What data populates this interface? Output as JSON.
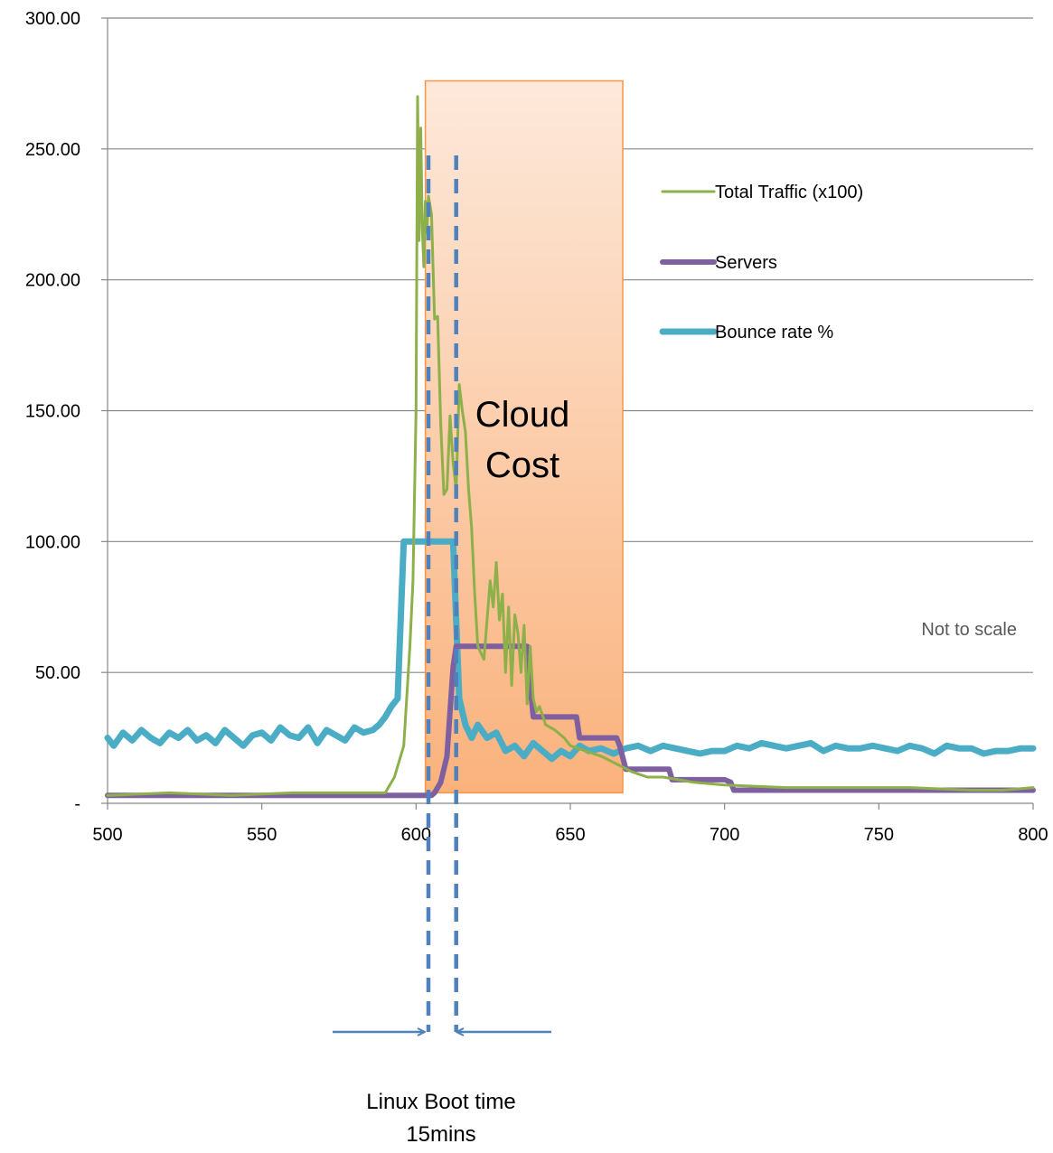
{
  "chart_data": {
    "type": "line",
    "title": "",
    "xlabel": "",
    "ylabel": "",
    "xlim": [
      500,
      800
    ],
    "ylim": [
      0,
      300
    ],
    "x_ticks": [
      500,
      550,
      600,
      650,
      700,
      750,
      800
    ],
    "x_tick_labels": [
      "500",
      "550",
      "600",
      "650",
      "700",
      "750",
      "800"
    ],
    "y_ticks": [
      0,
      50,
      100,
      150,
      200,
      250,
      300
    ],
    "y_tick_labels": [
      "-",
      "50.00",
      "100.00",
      "150.00",
      "200.00",
      "250.00",
      "300.00"
    ],
    "grid": true,
    "legend_position": "right",
    "series": [
      {
        "name": "Total Traffic (x100)",
        "color": "#8db04a",
        "x": [
          500,
          520,
          540,
          560,
          580,
          590,
          593,
          596,
          598,
          599,
          600,
          600.5,
          601,
          601.5,
          602,
          602.5,
          603,
          603.5,
          604,
          605,
          606,
          607,
          608,
          609,
          610,
          611,
          612,
          613,
          614,
          615,
          616,
          617,
          618,
          619,
          620,
          622,
          624,
          625,
          626,
          627,
          628,
          629,
          630,
          631,
          632,
          633,
          634,
          635,
          636,
          637,
          638,
          639,
          640,
          642,
          645,
          648,
          650,
          655,
          660,
          665,
          670,
          675,
          680,
          685,
          690,
          700,
          720,
          740,
          760,
          780,
          790,
          800
        ],
        "values": [
          3,
          4,
          3,
          4,
          4,
          4,
          10,
          22,
          60,
          85,
          150,
          270,
          215,
          258,
          220,
          205,
          230,
          218,
          232,
          225,
          185,
          186,
          145,
          118,
          120,
          148,
          130,
          120,
          160,
          150,
          142,
          120,
          105,
          80,
          60,
          55,
          85,
          75,
          92,
          70,
          80,
          50,
          75,
          45,
          72,
          65,
          50,
          68,
          38,
          60,
          40,
          35,
          37,
          30,
          28,
          25,
          22,
          20,
          18,
          15,
          12,
          10,
          10,
          9,
          8,
          7,
          6,
          6,
          6,
          5,
          5,
          6
        ]
      },
      {
        "name": "Servers",
        "color": "#7e5fa0",
        "x": [
          500,
          605,
          606,
          608,
          610,
          611,
          612,
          613,
          614,
          636,
          637,
          638,
          652,
          653,
          665,
          666,
          668,
          682,
          683,
          700,
          702,
          703,
          800
        ],
        "values": [
          3,
          3,
          4,
          8,
          18,
          35,
          52,
          60,
          60,
          60,
          45,
          33,
          33,
          25,
          25,
          22,
          13,
          13,
          9,
          9,
          8,
          5,
          5
        ]
      },
      {
        "name": "Bounce rate %",
        "color": "#4bacc6",
        "x": [
          500,
          502,
          505,
          508,
          511,
          514,
          517,
          520,
          523,
          526,
          529,
          532,
          535,
          538,
          541,
          544,
          547,
          550,
          553,
          556,
          559,
          562,
          565,
          568,
          571,
          574,
          577,
          580,
          583,
          586,
          588,
          590,
          592,
          594,
          596,
          597,
          612,
          613,
          614,
          615,
          616,
          618,
          620,
          623,
          626,
          629,
          632,
          635,
          638,
          641,
          644,
          647,
          650,
          653,
          656,
          660,
          664,
          668,
          672,
          676,
          680,
          684,
          688,
          692,
          696,
          700,
          704,
          708,
          712,
          716,
          720,
          724,
          728,
          732,
          736,
          740,
          744,
          748,
          752,
          756,
          760,
          764,
          768,
          772,
          776,
          780,
          784,
          788,
          792,
          796,
          800
        ],
        "values": [
          25,
          22,
          27,
          24,
          28,
          25,
          23,
          27,
          25,
          28,
          24,
          26,
          23,
          28,
          25,
          22,
          26,
          27,
          24,
          29,
          26,
          25,
          29,
          23,
          28,
          26,
          24,
          29,
          27,
          28,
          30,
          33,
          37,
          40,
          100,
          100,
          100,
          70,
          40,
          35,
          30,
          25,
          30,
          25,
          27,
          20,
          22,
          18,
          23,
          20,
          17,
          20,
          18,
          22,
          20,
          21,
          19,
          21,
          22,
          20,
          22,
          21,
          20,
          19,
          20,
          20,
          22,
          21,
          23,
          22,
          21,
          22,
          23,
          20,
          22,
          21,
          21,
          22,
          21,
          20,
          22,
          21,
          19,
          22,
          21,
          21,
          19,
          20,
          20,
          21,
          21
        ]
      }
    ],
    "annotations": {
      "cloud_cost_line1": "Cloud",
      "cloud_cost_line2": "Cost",
      "cloud_cost_x_range": [
        603,
        667
      ],
      "cloud_cost_y_range": [
        4,
        276
      ],
      "cloud_cost_fill_top": "#fde9db",
      "cloud_cost_fill_bottom": "#fab27c",
      "cloud_cost_border": "#f79646",
      "boot_line_x": [
        604,
        613
      ],
      "boot_line_color": "#4f81bd",
      "boot_label_line1": "Linux Boot time",
      "boot_label_line2": "15mins",
      "note": "Not to scale"
    }
  }
}
